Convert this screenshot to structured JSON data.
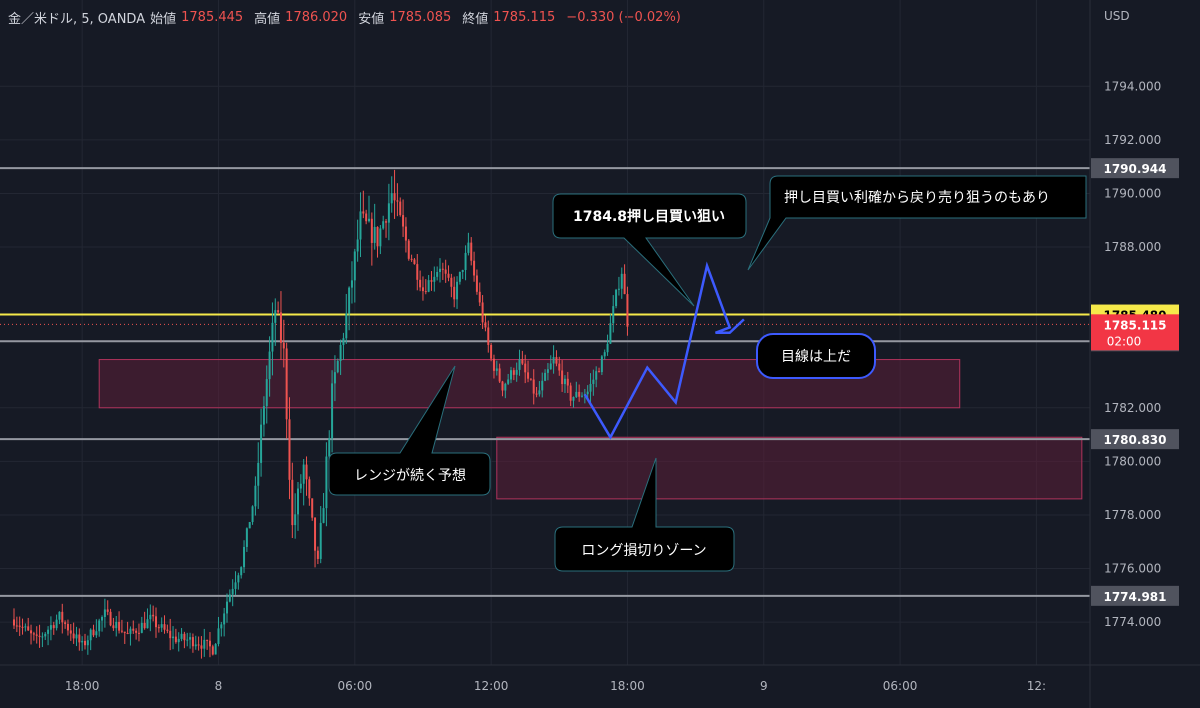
{
  "header": {
    "symbol": "金／米ドル, 5, OANDA",
    "open_label": "始値",
    "open": "1785.445",
    "high_label": "高値",
    "high": "1786.020",
    "low_label": "安値",
    "low": "1785.085",
    "close_label": "終値",
    "close": "1785.115",
    "change": "−0.330 (−0.02%)"
  },
  "colors": {
    "background": "#161a25",
    "up": "#26a69a",
    "down": "#ef5350",
    "current_price_line": "#f5e94a",
    "level_line": "#9598a1",
    "zone_fill": "#5c1f38",
    "zone_stroke": "#b0335c",
    "scenario_path": "#3d5afe",
    "callout_fill": "#000000",
    "callout_stroke": "#2a6f7c",
    "callout_blue_stroke": "#3d5afe"
  },
  "chart_data": {
    "type": "candlestick",
    "currency_label": "USD",
    "ylim": [
      1772.4,
      1796.1
    ],
    "y_ticks": [
      "1794.000",
      "1792.000",
      "1790.000",
      "1788.000",
      "1782.000",
      "1780.000",
      "1778.000",
      "1776.000",
      "1774.000"
    ],
    "x_ticks": [
      {
        "label": "18:00",
        "bar": 24
      },
      {
        "label": "8",
        "bar": 72
      },
      {
        "label": "06:00",
        "bar": 120
      },
      {
        "label": "12:00",
        "bar": 168
      },
      {
        "label": "18:00",
        "bar": 216
      },
      {
        "label": "9",
        "bar": 264
      },
      {
        "label": "06:00",
        "bar": 312
      },
      {
        "label": "12:",
        "bar": 360
      }
    ],
    "bars_total": 383,
    "price_levels": [
      {
        "value": 1790.944,
        "label": "1790.944",
        "style": "level"
      },
      {
        "value": 1785.48,
        "label": "1785.480",
        "style": "current"
      },
      {
        "value": 1784.481,
        "label": "1784.481",
        "style": "level"
      },
      {
        "value": 1780.83,
        "label": "1780.830",
        "style": "level"
      },
      {
        "value": 1774.981,
        "label": "1774.981",
        "style": "level"
      }
    ],
    "last_price": {
      "value": 1785.115,
      "label": "1785.115",
      "countdown": "02:00"
    },
    "zones": [
      {
        "name": "range",
        "from_bar": 30,
        "to_bar": 333,
        "top": 1783.8,
        "bottom": 1782.0
      },
      {
        "name": "long-stop",
        "from_bar": 170,
        "to_bar": 376,
        "top": 1780.9,
        "bottom": 1778.6
      }
    ],
    "scenario_path": [
      {
        "bar": 201,
        "price": 1782.5
      },
      {
        "bar": 210,
        "price": 1780.9
      },
      {
        "bar": 223,
        "price": 1783.5
      },
      {
        "bar": 233,
        "price": 1782.2
      },
      {
        "bar": 244,
        "price": 1787.3
      },
      {
        "bar": 252,
        "price": 1785.0
      },
      {
        "bar": 247,
        "price": 1784.8
      },
      {
        "bar": 252,
        "price": 1784.8
      },
      {
        "bar": 257,
        "price": 1785.3
      }
    ],
    "price_path": [
      {
        "bar": 0,
        "price": 1774.1
      },
      {
        "bar": 8,
        "price": 1773.3
      },
      {
        "bar": 16,
        "price": 1774.2
      },
      {
        "bar": 24,
        "price": 1773.1
      },
      {
        "bar": 32,
        "price": 1774.3
      },
      {
        "bar": 40,
        "price": 1773.5
      },
      {
        "bar": 48,
        "price": 1774.1
      },
      {
        "bar": 56,
        "price": 1773.4
      },
      {
        "bar": 64,
        "price": 1773.3
      },
      {
        "bar": 70,
        "price": 1773.0
      },
      {
        "bar": 75,
        "price": 1774.8
      },
      {
        "bar": 80,
        "price": 1776.2
      },
      {
        "bar": 85,
        "price": 1778.9
      },
      {
        "bar": 88,
        "price": 1782.2
      },
      {
        "bar": 92,
        "price": 1785.7
      },
      {
        "bar": 95,
        "price": 1784.0
      },
      {
        "bar": 98,
        "price": 1777.5
      },
      {
        "bar": 102,
        "price": 1779.8
      },
      {
        "bar": 107,
        "price": 1776.0
      },
      {
        "bar": 112,
        "price": 1782.5
      },
      {
        "bar": 117,
        "price": 1785.4
      },
      {
        "bar": 122,
        "price": 1789.0
      },
      {
        "bar": 128,
        "price": 1788.3
      },
      {
        "bar": 133,
        "price": 1790.0
      },
      {
        "bar": 138,
        "price": 1788.2
      },
      {
        "bar": 144,
        "price": 1786.4
      },
      {
        "bar": 150,
        "price": 1787.3
      },
      {
        "bar": 155,
        "price": 1786.2
      },
      {
        "bar": 160,
        "price": 1788.0
      },
      {
        "bar": 165,
        "price": 1785.3
      },
      {
        "bar": 168,
        "price": 1783.8
      },
      {
        "bar": 172,
        "price": 1782.8
      },
      {
        "bar": 178,
        "price": 1783.7
      },
      {
        "bar": 184,
        "price": 1782.4
      },
      {
        "bar": 190,
        "price": 1783.8
      },
      {
        "bar": 196,
        "price": 1782.4
      },
      {
        "bar": 202,
        "price": 1782.6
      },
      {
        "bar": 208,
        "price": 1784.0
      },
      {
        "bar": 212,
        "price": 1786.2
      },
      {
        "bar": 214,
        "price": 1787.1
      },
      {
        "bar": 216,
        "price": 1785.2
      }
    ],
    "annotations": [
      {
        "name": "callout-buy-dip",
        "text": "1784.8押し目買い狙い"
      },
      {
        "name": "callout-take-profit",
        "text": "押し目買い利確から戻り売り狙うのもあり"
      },
      {
        "name": "callout-bias-up",
        "text": "目線は上だ"
      },
      {
        "name": "callout-range",
        "text": "レンジが続く予想"
      },
      {
        "name": "callout-long-stop",
        "text": "ロング損切りゾーン"
      }
    ]
  }
}
